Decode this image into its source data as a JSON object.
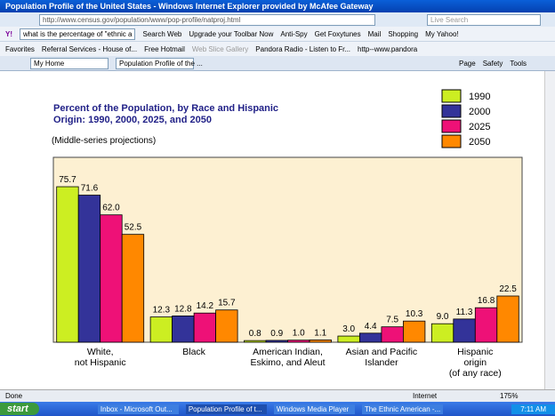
{
  "window": {
    "title": "Population Profile of the United States - Windows Internet Explorer provided by McAfee Gateway",
    "url": "http://www.census.gov/population/www/pop-profile/natproj.html",
    "search": "Live Search"
  },
  "toolbar": {
    "logo": "Y!",
    "search_box": "what is the percentage of \"ethnic a",
    "items": [
      "Search Web",
      "Upgrade your Toolbar Now",
      "Anti-Spy",
      "Get Foxytunes",
      "Mail",
      "Shopping",
      "My Yahoo!"
    ]
  },
  "favorites": {
    "label": "Favorites",
    "items": [
      "Referral Services - House of...",
      "Free Hotmail",
      "Web Slice Gallery",
      "Pandora Radio - Listen to Fr...",
      "http--www.pandora"
    ]
  },
  "tabs": {
    "items": [
      "My Home",
      "Population Profile of the ..."
    ],
    "commands": [
      "Page",
      "Safety",
      "Tools"
    ]
  },
  "status": {
    "text": "Done",
    "zone": "Internet",
    "zoom": "175%"
  },
  "taskbar": {
    "start": "start",
    "items": [
      "Inbox - Microsoft Out...",
      "Population Profile of t...",
      "Windows Media Player",
      "The Ethnic American -..."
    ],
    "clock": "7:11 AM"
  },
  "chart_data": {
    "type": "bar",
    "title": "Percent of the Population, by Race and Hispanic\nOrigin:  1990, 2000, 2025, and 2050",
    "subtitle": "(Middle-series projections)",
    "categories": [
      "White,\nnot Hispanic",
      "Black",
      "American Indian,\nEskimo, and Aleut",
      "Asian and Pacific\nIslander",
      "Hispanic\norigin\n(of any race)"
    ],
    "series": [
      {
        "name": "1990",
        "color": "#ccee22",
        "values": [
          75.7,
          12.3,
          0.8,
          3.0,
          9.0
        ],
        "value_labels": [
          "75.7",
          "12.3",
          "0.8",
          "3.0",
          "9.0"
        ]
      },
      {
        "name": "2000",
        "color": "#333399",
        "values": [
          71.6,
          12.8,
          0.9,
          4.4,
          11.3
        ],
        "value_labels": [
          "71.6",
          "12.8",
          "0.9",
          "4.4",
          "11.3"
        ]
      },
      {
        "name": "2025",
        "color": "#ee1177",
        "values": [
          62.0,
          14.2,
          1.0,
          7.5,
          16.8
        ],
        "value_labels": [
          "62.0",
          "14.2",
          "1.0",
          "7.5",
          "16.8"
        ]
      },
      {
        "name": "2050",
        "color": "#ff8800",
        "values": [
          52.5,
          15.7,
          1.1,
          10.3,
          22.5
        ],
        "value_labels": [
          "52.5",
          "15.7",
          "1.1",
          "10.3",
          "22.5"
        ]
      }
    ],
    "ylim": [
      0,
      90
    ],
    "legend": "top-right"
  }
}
